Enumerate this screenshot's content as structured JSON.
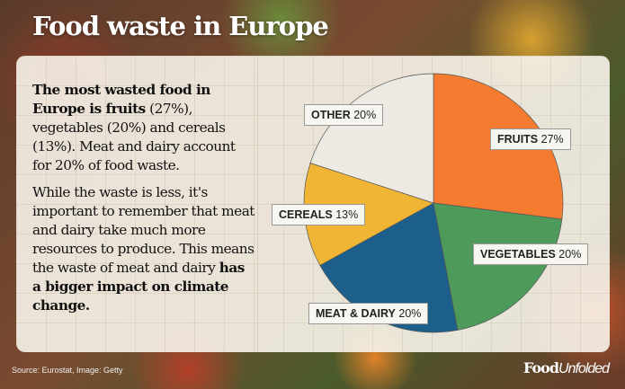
{
  "title": "Food waste in Europe",
  "text": {
    "p1_bold": "The most wasted food in Europe is fruits",
    "p1_rest": " (27%), vegetables (20%) and cereals (13%). Meat and dairy account for 20% of food waste.",
    "p2_start": "While the waste is less, it's important to remember that meat and dairy take much more resources to produce. This means the waste of meat and dairy ",
    "p2_bold": "has a bigger impact on climate change."
  },
  "source": "Source: Eurostat, Image: Getty",
  "logo": {
    "bold": "Food",
    "italic": "Unfolded"
  },
  "chart_data": {
    "type": "pie",
    "title": "Food waste in Europe",
    "start": "top, clockwise",
    "slices": [
      {
        "name": "FRUITS",
        "value": 27,
        "label": "27%",
        "color": "#f47b30"
      },
      {
        "name": "VEGETABLES",
        "value": 20,
        "label": "20%",
        "color": "#4e9a5a"
      },
      {
        "name": "MEAT & DAIRY",
        "value": 20,
        "label": "20%",
        "color": "#1b5f8a"
      },
      {
        "name": "CEREALS",
        "value": 13,
        "label": "13%",
        "color": "#f0b535"
      },
      {
        "name": "OTHER",
        "value": 20,
        "label": "20%",
        "color": "#eceae3"
      }
    ]
  }
}
